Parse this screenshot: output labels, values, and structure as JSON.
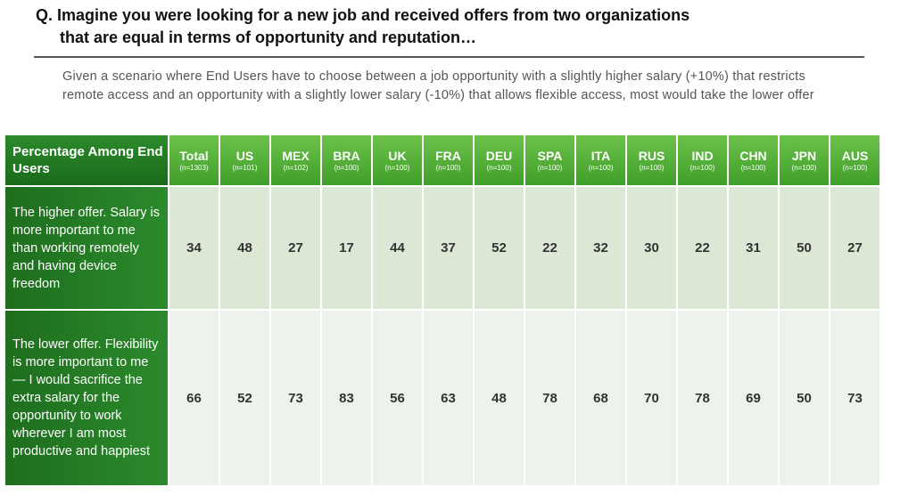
{
  "question": {
    "line1": "Q. Imagine you were looking for a new job and received offers from two organizations",
    "line2": "that are equal in terms of opportunity and reputation…"
  },
  "subtitle": "Given a scenario where End Users have to choose between a job opportunity with a slightly higher salary (+10%) that restricts remote access and an opportunity with a slightly lower salary (-10%) that allows flexible access, most would take the lower offer",
  "chart_data": {
    "type": "table",
    "header_label": "Percentage Among End Users",
    "columns": [
      {
        "code": "Total",
        "n": "(n=1303)"
      },
      {
        "code": "US",
        "n": "(n=101)"
      },
      {
        "code": "MEX",
        "n": "(n=102)"
      },
      {
        "code": "BRA",
        "n": "(n=100)"
      },
      {
        "code": "UK",
        "n": "(n=100)"
      },
      {
        "code": "FRA",
        "n": "(n=100)"
      },
      {
        "code": "DEU",
        "n": "(n=100)"
      },
      {
        "code": "SPA",
        "n": "(n=100)"
      },
      {
        "code": "ITA",
        "n": "(n=100)"
      },
      {
        "code": "RUS",
        "n": "(n=100)"
      },
      {
        "code": "IND",
        "n": "(n=100)"
      },
      {
        "code": "CHN",
        "n": "(n=100)"
      },
      {
        "code": "JPN",
        "n": "(n=100)"
      },
      {
        "code": "AUS",
        "n": "(n=100)"
      }
    ],
    "rows": [
      {
        "label": "The higher offer. Salary is more important to me than working remotely and having device freedom",
        "values": [
          34,
          48,
          27,
          17,
          44,
          37,
          52,
          22,
          32,
          30,
          22,
          31,
          50,
          27
        ]
      },
      {
        "label": "The lower offer. Flexibility is more important to me— I would sacrifice the extra salary for the opportunity to work wherever I am most productive and happiest",
        "values": [
          66,
          52,
          73,
          83,
          56,
          63,
          48,
          78,
          68,
          70,
          78,
          69,
          50,
          73
        ]
      }
    ]
  },
  "colors": {
    "header_dark": "#1f6f1f",
    "header_light": "#5cb83c",
    "row1_bg": "#dce8d6",
    "row2_bg": "#eef2ec"
  }
}
